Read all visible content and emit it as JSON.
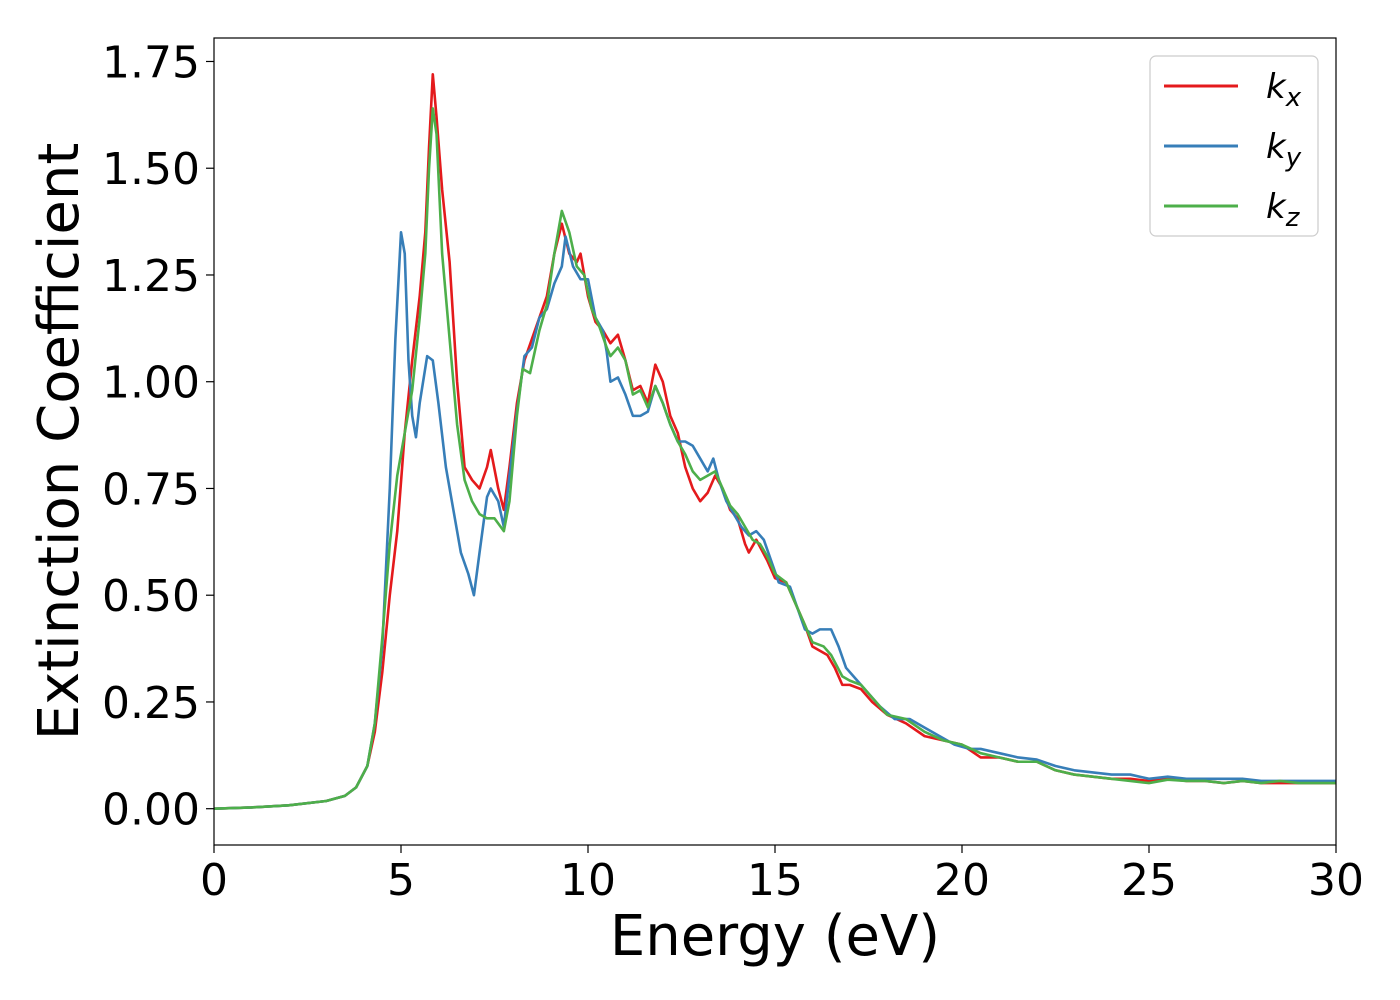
{
  "chart_data": {
    "type": "line",
    "title": "",
    "xlabel": "Energy (eV)",
    "ylabel": "Extinction Coefficient",
    "xlim": [
      0,
      30
    ],
    "ylim": [
      -0.085,
      1.805
    ],
    "xticks": [
      0,
      5,
      10,
      15,
      20,
      25,
      30
    ],
    "xtick_labels": [
      "0",
      "5",
      "10",
      "15",
      "20",
      "25",
      "30"
    ],
    "yticks": [
      0.0,
      0.25,
      0.5,
      0.75,
      1.0,
      1.25,
      1.5,
      1.75
    ],
    "ytick_labels": [
      "0.00",
      "0.25",
      "0.50",
      "0.75",
      "1.00",
      "1.25",
      "1.50",
      "1.75"
    ],
    "grid": false,
    "legend_position": "top-right",
    "series": [
      {
        "name": "k_x",
        "label_base": "k",
        "label_sub": "x",
        "color": "#e41a1c",
        "points": [
          [
            0,
            0
          ],
          [
            1,
            0.003
          ],
          [
            2,
            0.008
          ],
          [
            3,
            0.018
          ],
          [
            3.5,
            0.03
          ],
          [
            3.8,
            0.05
          ],
          [
            4.1,
            0.1
          ],
          [
            4.3,
            0.18
          ],
          [
            4.5,
            0.32
          ],
          [
            4.7,
            0.5
          ],
          [
            4.9,
            0.65
          ],
          [
            5.1,
            0.88
          ],
          [
            5.3,
            1.05
          ],
          [
            5.5,
            1.2
          ],
          [
            5.65,
            1.35
          ],
          [
            5.75,
            1.55
          ],
          [
            5.85,
            1.72
          ],
          [
            5.95,
            1.62
          ],
          [
            6.1,
            1.45
          ],
          [
            6.3,
            1.28
          ],
          [
            6.5,
            1.0
          ],
          [
            6.7,
            0.8
          ],
          [
            6.9,
            0.77
          ],
          [
            7.1,
            0.75
          ],
          [
            7.3,
            0.8
          ],
          [
            7.4,
            0.84
          ],
          [
            7.6,
            0.75
          ],
          [
            7.75,
            0.7
          ],
          [
            7.9,
            0.8
          ],
          [
            8.1,
            0.95
          ],
          [
            8.3,
            1.05
          ],
          [
            8.5,
            1.1
          ],
          [
            8.7,
            1.15
          ],
          [
            8.9,
            1.2
          ],
          [
            9.1,
            1.3
          ],
          [
            9.3,
            1.37
          ],
          [
            9.5,
            1.3
          ],
          [
            9.7,
            1.28
          ],
          [
            9.8,
            1.3
          ],
          [
            10,
            1.2
          ],
          [
            10.2,
            1.14
          ],
          [
            10.4,
            1.12
          ],
          [
            10.6,
            1.09
          ],
          [
            10.8,
            1.11
          ],
          [
            11,
            1.05
          ],
          [
            11.2,
            0.98
          ],
          [
            11.4,
            0.99
          ],
          [
            11.6,
            0.95
          ],
          [
            11.8,
            1.04
          ],
          [
            12,
            1.0
          ],
          [
            12.2,
            0.92
          ],
          [
            12.4,
            0.88
          ],
          [
            12.6,
            0.8
          ],
          [
            12.8,
            0.75
          ],
          [
            13,
            0.72
          ],
          [
            13.2,
            0.74
          ],
          [
            13.4,
            0.78
          ],
          [
            13.6,
            0.75
          ],
          [
            13.8,
            0.7
          ],
          [
            14.0,
            0.68
          ],
          [
            14.2,
            0.62
          ],
          [
            14.3,
            0.6
          ],
          [
            14.5,
            0.63
          ],
          [
            14.8,
            0.58
          ],
          [
            15,
            0.54
          ],
          [
            15.3,
            0.53
          ],
          [
            15.5,
            0.49
          ],
          [
            15.8,
            0.43
          ],
          [
            16,
            0.38
          ],
          [
            16.2,
            0.37
          ],
          [
            16.4,
            0.36
          ],
          [
            16.6,
            0.33
          ],
          [
            16.8,
            0.29
          ],
          [
            17,
            0.29
          ],
          [
            17.3,
            0.28
          ],
          [
            17.6,
            0.25
          ],
          [
            18,
            0.22
          ],
          [
            18.5,
            0.2
          ],
          [
            19,
            0.17
          ],
          [
            19.5,
            0.16
          ],
          [
            20,
            0.15
          ],
          [
            20.5,
            0.12
          ],
          [
            21,
            0.12
          ],
          [
            21.5,
            0.11
          ],
          [
            22,
            0.11
          ],
          [
            22.5,
            0.09
          ],
          [
            23,
            0.08
          ],
          [
            23.5,
            0.075
          ],
          [
            24,
            0.07
          ],
          [
            24.5,
            0.07
          ],
          [
            25,
            0.065
          ],
          [
            25.5,
            0.07
          ],
          [
            26,
            0.065
          ],
          [
            26.5,
            0.065
          ],
          [
            27,
            0.06
          ],
          [
            27.5,
            0.065
          ],
          [
            28,
            0.06
          ],
          [
            28.5,
            0.06
          ],
          [
            29,
            0.06
          ],
          [
            29.5,
            0.06
          ],
          [
            30,
            0.06
          ]
        ]
      },
      {
        "name": "k_y",
        "label_base": "k",
        "label_sub": "y",
        "color": "#377eb8",
        "points": [
          [
            0,
            0
          ],
          [
            1,
            0.003
          ],
          [
            2,
            0.008
          ],
          [
            3,
            0.018
          ],
          [
            3.5,
            0.03
          ],
          [
            3.8,
            0.05
          ],
          [
            4.1,
            0.1
          ],
          [
            4.3,
            0.2
          ],
          [
            4.5,
            0.38
          ],
          [
            4.7,
            0.75
          ],
          [
            4.85,
            1.1
          ],
          [
            5.0,
            1.35
          ],
          [
            5.1,
            1.3
          ],
          [
            5.2,
            1.05
          ],
          [
            5.3,
            0.92
          ],
          [
            5.4,
            0.87
          ],
          [
            5.5,
            0.95
          ],
          [
            5.7,
            1.06
          ],
          [
            5.85,
            1.05
          ],
          [
            6.0,
            0.95
          ],
          [
            6.2,
            0.8
          ],
          [
            6.4,
            0.7
          ],
          [
            6.6,
            0.6
          ],
          [
            6.8,
            0.55
          ],
          [
            6.95,
            0.5
          ],
          [
            7.1,
            0.6
          ],
          [
            7.3,
            0.73
          ],
          [
            7.4,
            0.75
          ],
          [
            7.6,
            0.72
          ],
          [
            7.75,
            0.66
          ],
          [
            7.9,
            0.78
          ],
          [
            8.1,
            0.93
          ],
          [
            8.3,
            1.06
          ],
          [
            8.5,
            1.08
          ],
          [
            8.7,
            1.15
          ],
          [
            8.9,
            1.17
          ],
          [
            9.1,
            1.23
          ],
          [
            9.3,
            1.27
          ],
          [
            9.4,
            1.34
          ],
          [
            9.6,
            1.27
          ],
          [
            9.8,
            1.24
          ],
          [
            10,
            1.24
          ],
          [
            10.2,
            1.15
          ],
          [
            10.4,
            1.12
          ],
          [
            10.5,
            1.07
          ],
          [
            10.6,
            1.0
          ],
          [
            10.8,
            1.01
          ],
          [
            11,
            0.97
          ],
          [
            11.2,
            0.92
          ],
          [
            11.4,
            0.92
          ],
          [
            11.6,
            0.93
          ],
          [
            11.8,
            0.99
          ],
          [
            12,
            0.95
          ],
          [
            12.2,
            0.9
          ],
          [
            12.4,
            0.86
          ],
          [
            12.6,
            0.86
          ],
          [
            12.8,
            0.85
          ],
          [
            13,
            0.82
          ],
          [
            13.2,
            0.79
          ],
          [
            13.35,
            0.82
          ],
          [
            13.5,
            0.77
          ],
          [
            13.7,
            0.72
          ],
          [
            13.9,
            0.69
          ],
          [
            14.1,
            0.66
          ],
          [
            14.3,
            0.64
          ],
          [
            14.5,
            0.65
          ],
          [
            14.7,
            0.63
          ],
          [
            14.9,
            0.58
          ],
          [
            15.1,
            0.53
          ],
          [
            15.4,
            0.52
          ],
          [
            15.6,
            0.47
          ],
          [
            15.8,
            0.42
          ],
          [
            16,
            0.41
          ],
          [
            16.2,
            0.42
          ],
          [
            16.5,
            0.42
          ],
          [
            16.7,
            0.38
          ],
          [
            16.9,
            0.33
          ],
          [
            17.2,
            0.3
          ],
          [
            17.5,
            0.27
          ],
          [
            17.8,
            0.24
          ],
          [
            18.2,
            0.21
          ],
          [
            18.6,
            0.21
          ],
          [
            19,
            0.19
          ],
          [
            19.4,
            0.17
          ],
          [
            19.8,
            0.15
          ],
          [
            20.2,
            0.14
          ],
          [
            20.5,
            0.14
          ],
          [
            21,
            0.13
          ],
          [
            21.5,
            0.12
          ],
          [
            22,
            0.115
          ],
          [
            22.5,
            0.1
          ],
          [
            23,
            0.09
          ],
          [
            23.5,
            0.085
          ],
          [
            24,
            0.08
          ],
          [
            24.5,
            0.08
          ],
          [
            25,
            0.07
          ],
          [
            25.5,
            0.075
          ],
          [
            26,
            0.07
          ],
          [
            26.5,
            0.07
          ],
          [
            27,
            0.07
          ],
          [
            27.5,
            0.07
          ],
          [
            28,
            0.065
          ],
          [
            28.5,
            0.065
          ],
          [
            29,
            0.065
          ],
          [
            29.5,
            0.065
          ],
          [
            30,
            0.065
          ]
        ]
      },
      {
        "name": "k_z",
        "label_base": "k",
        "label_sub": "z",
        "color": "#4daf4a",
        "points": [
          [
            0,
            0
          ],
          [
            1,
            0.003
          ],
          [
            2,
            0.008
          ],
          [
            3,
            0.018
          ],
          [
            3.5,
            0.03
          ],
          [
            3.8,
            0.05
          ],
          [
            4.1,
            0.1
          ],
          [
            4.3,
            0.2
          ],
          [
            4.5,
            0.4
          ],
          [
            4.7,
            0.62
          ],
          [
            4.9,
            0.78
          ],
          [
            5.1,
            0.88
          ],
          [
            5.3,
            0.98
          ],
          [
            5.5,
            1.15
          ],
          [
            5.65,
            1.3
          ],
          [
            5.75,
            1.5
          ],
          [
            5.85,
            1.64
          ],
          [
            5.95,
            1.58
          ],
          [
            6.1,
            1.3
          ],
          [
            6.3,
            1.1
          ],
          [
            6.5,
            0.9
          ],
          [
            6.7,
            0.77
          ],
          [
            6.9,
            0.72
          ],
          [
            7.1,
            0.69
          ],
          [
            7.3,
            0.68
          ],
          [
            7.5,
            0.68
          ],
          [
            7.75,
            0.65
          ],
          [
            7.9,
            0.72
          ],
          [
            8.1,
            0.92
          ],
          [
            8.25,
            1.03
          ],
          [
            8.45,
            1.02
          ],
          [
            8.7,
            1.12
          ],
          [
            8.9,
            1.18
          ],
          [
            9.1,
            1.3
          ],
          [
            9.3,
            1.4
          ],
          [
            9.5,
            1.35
          ],
          [
            9.7,
            1.27
          ],
          [
            9.9,
            1.25
          ],
          [
            10.1,
            1.17
          ],
          [
            10.3,
            1.13
          ],
          [
            10.5,
            1.08
          ],
          [
            10.6,
            1.06
          ],
          [
            10.8,
            1.08
          ],
          [
            11,
            1.05
          ],
          [
            11.2,
            0.97
          ],
          [
            11.4,
            0.98
          ],
          [
            11.6,
            0.94
          ],
          [
            11.8,
            0.99
          ],
          [
            12,
            0.95
          ],
          [
            12.2,
            0.9
          ],
          [
            12.4,
            0.86
          ],
          [
            12.6,
            0.83
          ],
          [
            12.8,
            0.79
          ],
          [
            13,
            0.77
          ],
          [
            13.2,
            0.78
          ],
          [
            13.4,
            0.79
          ],
          [
            13.6,
            0.75
          ],
          [
            13.8,
            0.71
          ],
          [
            14,
            0.69
          ],
          [
            14.2,
            0.66
          ],
          [
            14.4,
            0.63
          ],
          [
            14.6,
            0.62
          ],
          [
            14.8,
            0.59
          ],
          [
            15,
            0.55
          ],
          [
            15.3,
            0.53
          ],
          [
            15.5,
            0.49
          ],
          [
            15.8,
            0.43
          ],
          [
            16,
            0.39
          ],
          [
            16.3,
            0.38
          ],
          [
            16.5,
            0.36
          ],
          [
            16.8,
            0.31
          ],
          [
            17,
            0.3
          ],
          [
            17.3,
            0.29
          ],
          [
            17.6,
            0.26
          ],
          [
            18,
            0.22
          ],
          [
            18.5,
            0.21
          ],
          [
            19,
            0.18
          ],
          [
            19.5,
            0.16
          ],
          [
            20,
            0.15
          ],
          [
            20.5,
            0.13
          ],
          [
            21,
            0.12
          ],
          [
            21.5,
            0.11
          ],
          [
            22,
            0.11
          ],
          [
            22.5,
            0.09
          ],
          [
            23,
            0.08
          ],
          [
            23.5,
            0.075
          ],
          [
            24,
            0.07
          ],
          [
            24.5,
            0.065
          ],
          [
            25,
            0.06
          ],
          [
            25.5,
            0.068
          ],
          [
            26,
            0.065
          ],
          [
            26.5,
            0.065
          ],
          [
            27,
            0.06
          ],
          [
            27.5,
            0.065
          ],
          [
            28,
            0.06
          ],
          [
            28.5,
            0.065
          ],
          [
            29,
            0.06
          ],
          [
            29.5,
            0.06
          ],
          [
            30,
            0.06
          ]
        ]
      }
    ]
  }
}
